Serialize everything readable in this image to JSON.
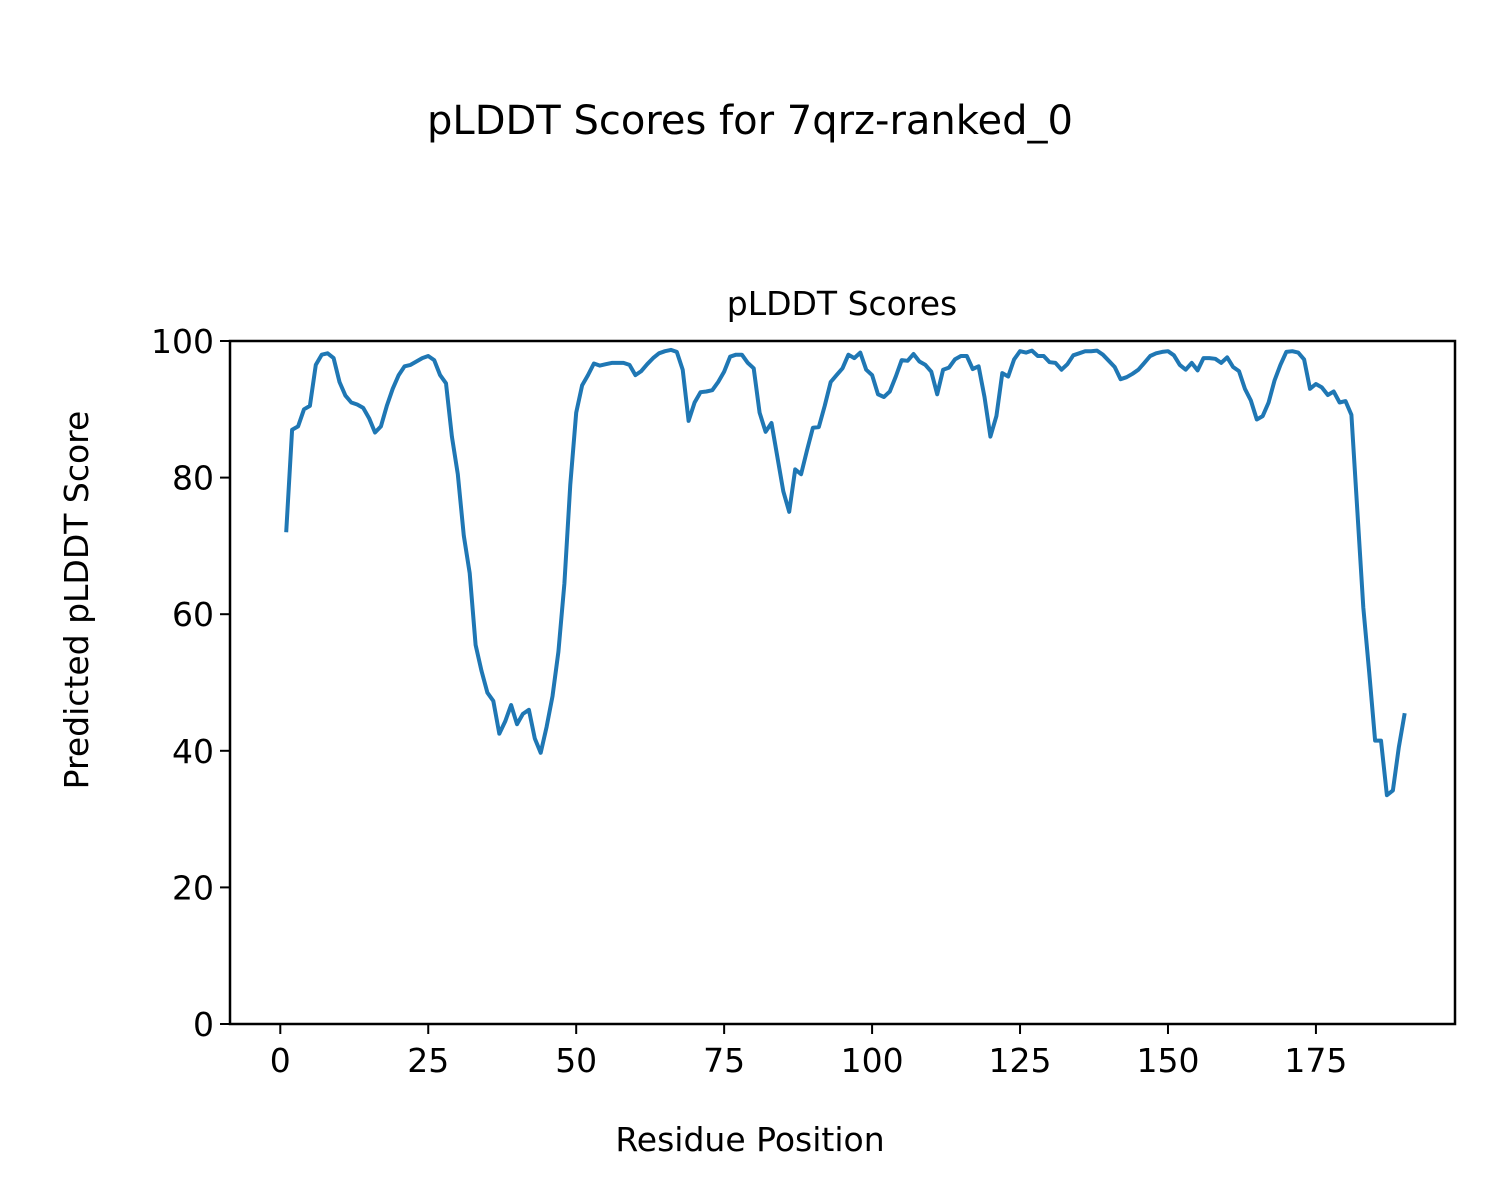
{
  "chart_data": {
    "type": "line",
    "suptitle": "pLDDT Scores for 7qrz-ranked_0",
    "title": "pLDDT Scores",
    "xlabel": "Residue Position",
    "ylabel": "Predicted pLDDT Score",
    "xlim": [
      -8.5,
      198.5
    ],
    "ylim": [
      0,
      100
    ],
    "xticks": [
      0,
      25,
      50,
      75,
      100,
      125,
      150,
      175
    ],
    "yticks": [
      0,
      20,
      40,
      60,
      80,
      100
    ],
    "grid": false,
    "line_color": "#1f77b4",
    "series": [
      {
        "name": "pLDDT",
        "x_start": 1,
        "values": [
          72,
          87,
          87.5,
          90,
          90.5,
          96.5,
          98,
          98.2,
          97.5,
          94,
          92,
          91,
          90.7,
          90.2,
          88.7,
          86.6,
          87.5,
          90.5,
          93,
          95,
          96.3,
          96.5,
          97,
          97.5,
          97.8,
          97.2,
          95,
          93.8,
          86,
          80.5,
          71.5,
          66,
          55.5,
          51.7,
          48.5,
          47.3,
          42.5,
          44.3,
          46.7,
          43.9,
          45.4,
          46,
          41.8,
          39.7,
          43.5,
          48,
          54.5,
          64.5,
          79,
          89.5,
          93.5,
          95,
          96.7,
          96.4,
          96.6,
          96.8,
          96.8,
          96.8,
          96.5,
          95,
          95.6,
          96.6,
          97.5,
          98.2,
          98.5,
          98.7,
          98.4,
          95.8,
          88.3,
          91,
          92.5,
          92.6,
          92.8,
          94,
          95.5,
          97.7,
          98,
          98,
          96.8,
          96,
          89.5,
          86.7,
          88,
          83,
          78,
          75,
          81.2,
          80.5,
          84,
          87.3,
          87.4,
          90.5,
          94,
          95,
          96,
          98,
          97.5,
          98.3,
          95.8,
          95,
          92.2,
          91.8,
          92.6,
          94.8,
          97.2,
          97.1,
          98.1,
          97,
          96.5,
          95.5,
          92.2,
          95.8,
          96.1,
          97.3,
          97.8,
          97.8,
          95.9,
          96.3,
          91.8,
          86,
          89,
          95.3,
          94.8,
          97.3,
          98.5,
          98.3,
          98.6,
          97.8,
          97.8,
          96.9,
          96.8,
          95.8,
          96.6,
          97.9,
          98.2,
          98.5,
          98.5,
          98.6,
          98,
          97.1,
          96.2,
          94.4,
          94.7,
          95.2,
          95.8,
          96.8,
          97.8,
          98.2,
          98.4,
          98.5,
          97.9,
          96.5,
          95.8,
          96.8,
          95.7,
          97.5,
          97.5,
          97.4,
          96.8,
          97.6,
          96.2,
          95.6,
          93,
          91.3,
          88.5,
          89,
          91,
          94.2,
          96.5,
          98.4,
          98.5,
          98.3,
          97.3,
          93,
          93.7,
          93.2,
          92.1,
          92.6,
          91,
          91.2,
          89.2,
          75,
          61,
          51.5,
          41.5,
          41.5,
          33.5,
          34.2,
          40.5,
          45.5
        ]
      }
    ]
  }
}
